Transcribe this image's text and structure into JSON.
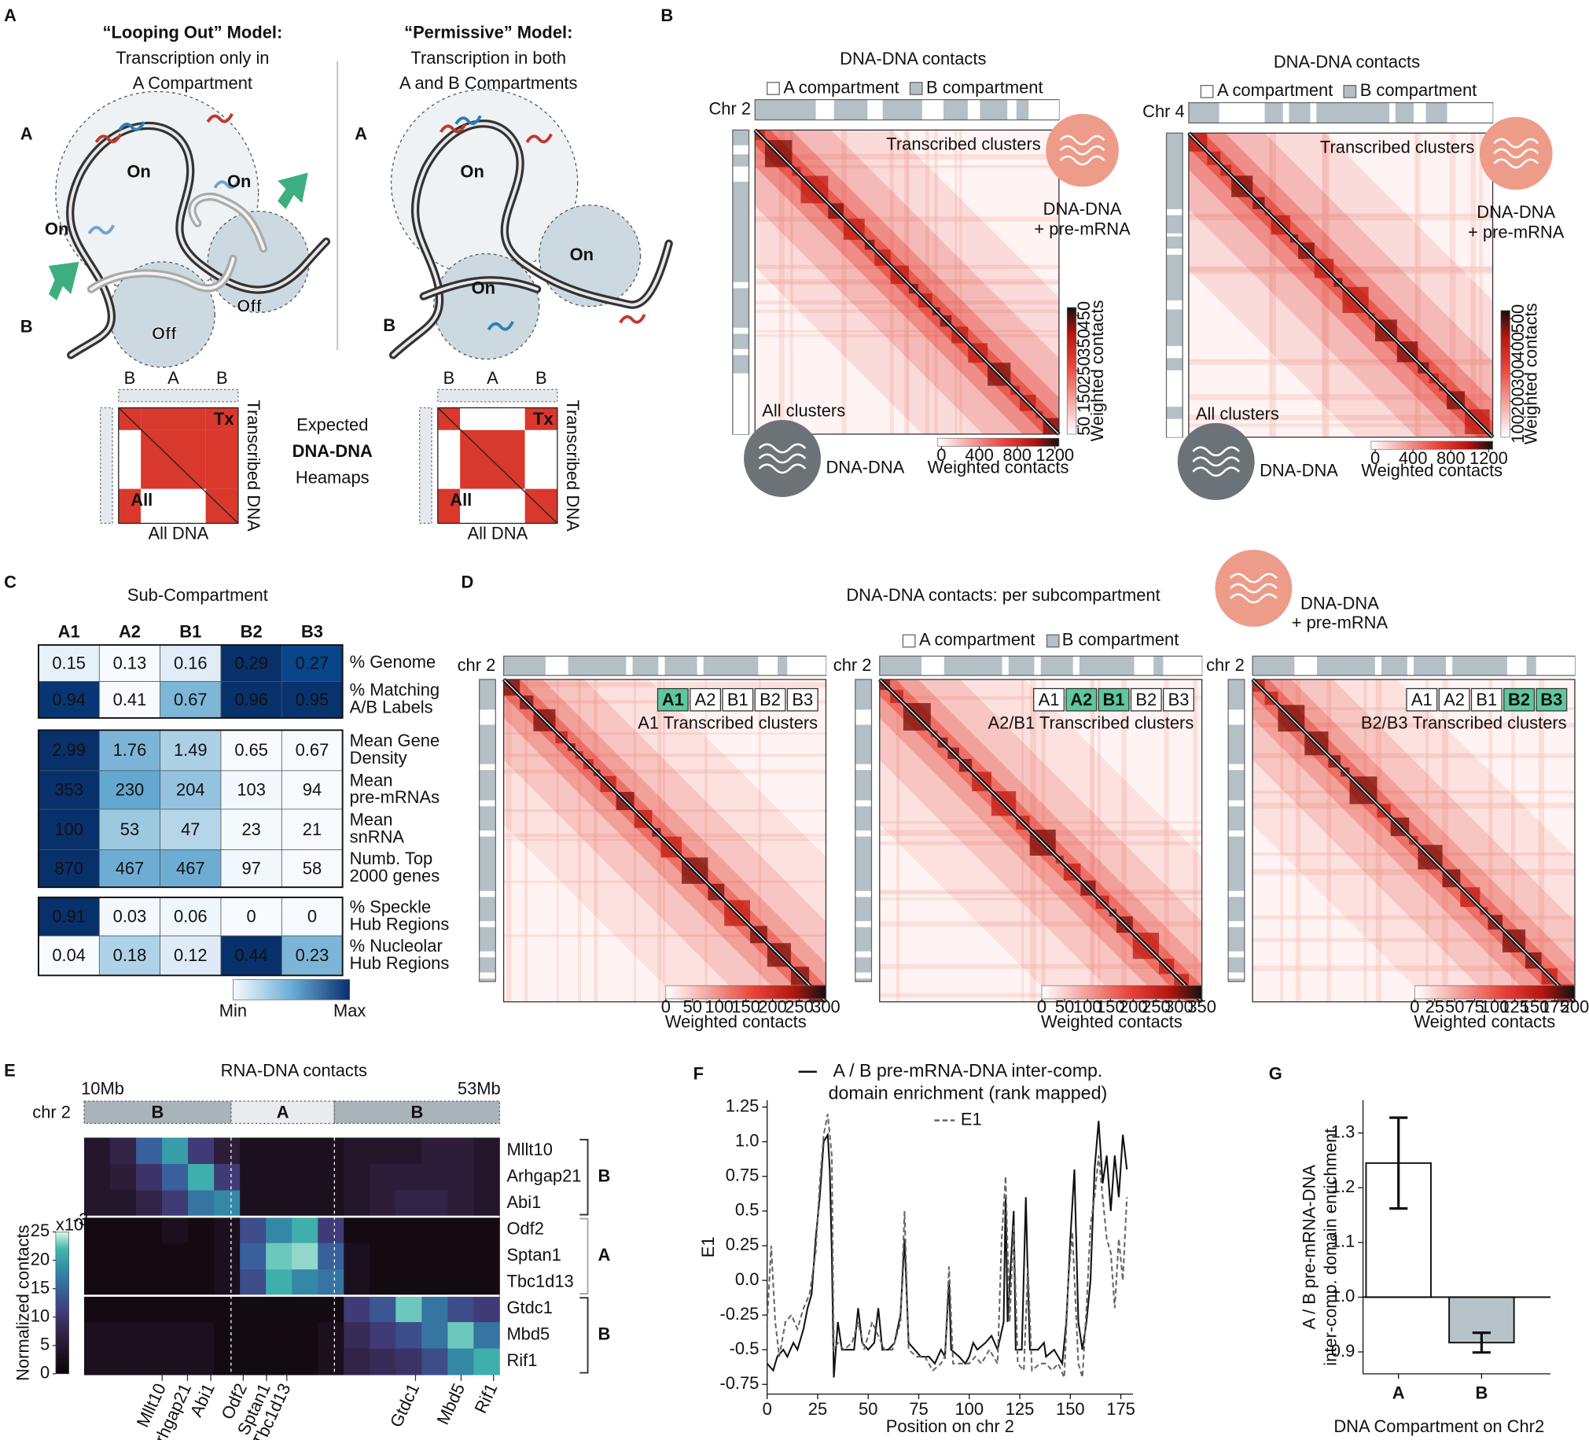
{
  "panel_a": {
    "label": "A",
    "left_title": [
      "“Looping Out” Model:",
      "Transcription only in",
      "A Compartment"
    ],
    "right_title": [
      "“Permissive” Model:",
      "Transcription in both",
      "A and B Compartments"
    ],
    "side_labels": [
      "A",
      "B"
    ],
    "on": "On",
    "off": "Off",
    "matrix_cols": [
      "B",
      "A",
      "B"
    ],
    "tx": "Tx",
    "all": "All",
    "y_label": "Transcribed DNA",
    "x_label": "All DNA",
    "expected": [
      "Expected",
      "DNA-DNA",
      "Heamaps"
    ]
  },
  "panel_b": {
    "label": "B",
    "legend": [
      "A compartment",
      "B compartment"
    ],
    "top_label": "Transcribed clusters",
    "top_icon": [
      "DNA-DNA",
      "+ pre-mRNA"
    ],
    "bottom_label": "All clusters",
    "bottom_icon": "DNA-DNA",
    "colorbar_label": "Weighted contacts",
    "maps": [
      {
        "title": "DNA-DNA contacts",
        "chrom": "Chr 2",
        "colorbar_ticks": [
          0,
          400,
          800,
          1200
        ],
        "vbar_ticks": [
          50,
          150,
          250,
          350,
          450
        ]
      },
      {
        "title": "DNA-DNA contacts",
        "chrom": "Chr 4",
        "colorbar_ticks": [
          0,
          400,
          800,
          1200
        ],
        "vbar_ticks": [
          100,
          200,
          300,
          400,
          500
        ]
      }
    ]
  },
  "panel_c": {
    "label": "C",
    "title": "Sub-Compartment",
    "columns": [
      "A1",
      "A2",
      "B1",
      "B2",
      "B3"
    ],
    "min": "Min",
    "max": "Max",
    "groups": [
      [
        {
          "label": [
            "% Genome"
          ],
          "values": [
            0.15,
            0.13,
            0.16,
            0.29,
            0.27
          ]
        },
        {
          "label": [
            "% Matching",
            "A/B Labels"
          ],
          "values": [
            0.94,
            0.41,
            0.67,
            0.96,
            0.95
          ]
        }
      ],
      [
        {
          "label": [
            "Mean Gene",
            "Density"
          ],
          "values": [
            2.99,
            1.76,
            1.49,
            0.65,
            0.67
          ]
        },
        {
          "label": [
            "Mean",
            "pre-mRNAs"
          ],
          "values": [
            353,
            230,
            204,
            103,
            94
          ]
        },
        {
          "label": [
            "Mean",
            "snRNA"
          ],
          "values": [
            100,
            53,
            47,
            23,
            21
          ]
        },
        {
          "label": [
            "Numb. Top",
            "2000 genes"
          ],
          "values": [
            870,
            467,
            467,
            97,
            58
          ]
        }
      ],
      [
        {
          "label": [
            "% Speckle",
            "Hub Regions"
          ],
          "values": [
            0.91,
            0.03,
            0.06,
            0,
            0
          ]
        },
        {
          "label": [
            "% Nucleolar",
            "Hub Regions"
          ],
          "values": [
            0.04,
            0.18,
            0.12,
            0.44,
            0.23
          ]
        }
      ]
    ]
  },
  "panel_d": {
    "label": "D",
    "title": "DNA-DNA contacts: per subcompartment",
    "icon": [
      "DNA-DNA",
      "+ pre-mRNA"
    ],
    "legend": [
      "A compartment",
      "B compartment"
    ],
    "chips": [
      "A1",
      "A2",
      "B1",
      "B2",
      "B3"
    ],
    "colorbar_label": "Weighted contacts",
    "maps": [
      {
        "chrom": "chr 2",
        "highlight": [
          "A1"
        ],
        "caption": "A1 Transcribed clusters",
        "colorbar_ticks": [
          0,
          50,
          100,
          150,
          200,
          250,
          300
        ]
      },
      {
        "chrom": "chr 2",
        "highlight": [
          "A2",
          "B1"
        ],
        "caption": "A2/B1 Transcribed clusters",
        "colorbar_ticks": [
          0,
          50,
          100,
          150,
          200,
          250,
          300,
          350
        ]
      },
      {
        "chrom": "chr 2",
        "highlight": [
          "B2",
          "B3"
        ],
        "caption": "B2/B3 Transcribed clusters",
        "colorbar_ticks": [
          0,
          25,
          50,
          75,
          100,
          125,
          150,
          175,
          200
        ]
      }
    ]
  },
  "panel_e": {
    "label": "E",
    "title": "RNA-DNA contacts",
    "start": "10Mb",
    "end": "53Mb",
    "chrom": "chr 2",
    "segments": [
      "B",
      "A",
      "B"
    ],
    "genes": [
      "Mllt10",
      "Arhgap21",
      "Abi1",
      "Odf2",
      "Sptan1",
      "Tbc1d13",
      "Gtdc1",
      "Mbd5",
      "Rif1"
    ],
    "groups": [
      "B",
      "A",
      "B"
    ],
    "colorbar_label": "Normalized contacts",
    "colorbar_scale": {
      "base": "x10",
      "exp": "-3"
    },
    "colorbar_ticks": [
      0,
      5,
      10,
      15,
      20,
      25
    ],
    "vlim": [
      0,
      25
    ],
    "values": [
      [
        3,
        5,
        12,
        18,
        8,
        4,
        2,
        2,
        2,
        2,
        3,
        3,
        3,
        4,
        4,
        3
      ],
      [
        3,
        4,
        7,
        12,
        20,
        8,
        2,
        2,
        2,
        2,
        3,
        4,
        4,
        4,
        4,
        3
      ],
      [
        3,
        3,
        5,
        8,
        14,
        16,
        2,
        2,
        2,
        2,
        3,
        4,
        5,
        5,
        4,
        3
      ],
      [
        1,
        1,
        1,
        2,
        1,
        2,
        10,
        16,
        20,
        8,
        1,
        1,
        1,
        1,
        1,
        1
      ],
      [
        1,
        1,
        1,
        1,
        1,
        2,
        12,
        22,
        23,
        12,
        2,
        1,
        1,
        1,
        1,
        1
      ],
      [
        1,
        1,
        1,
        1,
        1,
        2,
        10,
        20,
        16,
        14,
        2,
        1,
        1,
        1,
        1,
        1
      ],
      [
        1,
        1,
        1,
        1,
        1,
        1,
        1,
        1,
        1,
        1,
        8,
        11,
        22,
        14,
        10,
        8
      ],
      [
        2,
        2,
        2,
        2,
        2,
        1,
        1,
        1,
        1,
        2,
        6,
        8,
        10,
        14,
        22,
        14
      ],
      [
        2,
        2,
        2,
        2,
        2,
        1,
        1,
        1,
        1,
        2,
        5,
        6,
        7,
        10,
        16,
        20
      ]
    ]
  },
  "panel_f": {
    "label": "F",
    "type": "line",
    "ylabel": "E1",
    "xlabel": "Position on chr 2",
    "xlim": [
      0,
      181
    ],
    "ylim": [
      -0.82,
      1.3
    ],
    "xticks": [
      0,
      25,
      50,
      75,
      100,
      125,
      150,
      175
    ],
    "yticks": [
      -0.75,
      {
        "value": -0.5,
        "label": "-0.5"
      },
      -0.25,
      {
        "value": 0,
        "label": "0.0"
      },
      0.25,
      {
        "value": 0.5,
        "label": "0.5"
      },
      0.75,
      {
        "value": 1,
        "label": "1.0"
      },
      1.25
    ],
    "series": [
      {
        "name": "A / B pre-mRNA-DNA inter-comp. domain enrichment (rank mapped)",
        "color": "#111111",
        "dash": false,
        "x": [
          0,
          3,
          5,
          8,
          10,
          13,
          15,
          18,
          20,
          22,
          24,
          26,
          28,
          30,
          31,
          32,
          33,
          35,
          37,
          40,
          43,
          45,
          47,
          50,
          53,
          55,
          57,
          60,
          63,
          66,
          68,
          70,
          73,
          76,
          80,
          83,
          86,
          88,
          90,
          91,
          95,
          98,
          100,
          102,
          104,
          108,
          111,
          114,
          117,
          118,
          119,
          122,
          123,
          126,
          128,
          129,
          130,
          134,
          137,
          138,
          142,
          146,
          148,
          150,
          152,
          154,
          156,
          158,
          160,
          162,
          164,
          166,
          168,
          170,
          172,
          174,
          176,
          178
        ],
        "values": [
          -0.6,
          -0.65,
          -0.55,
          -0.5,
          -0.55,
          -0.45,
          -0.5,
          -0.35,
          -0.2,
          -0.1,
          0.3,
          0.6,
          1.0,
          1.05,
          0.8,
          0.2,
          -0.7,
          -0.3,
          -0.5,
          -0.5,
          -0.5,
          -0.2,
          -0.45,
          -0.5,
          -0.45,
          -0.2,
          -0.5,
          -0.5,
          -0.45,
          -0.25,
          0.3,
          -0.45,
          -0.5,
          -0.55,
          -0.55,
          -0.6,
          -0.5,
          -0.55,
          0.0,
          -0.5,
          -0.55,
          -0.6,
          -0.55,
          -0.45,
          -0.5,
          -0.45,
          -0.4,
          -0.5,
          -0.3,
          0.6,
          -0.3,
          0.5,
          -0.5,
          -0.5,
          0.6,
          0.0,
          -0.5,
          -0.5,
          -0.45,
          -0.55,
          -0.5,
          -0.6,
          -0.3,
          0.3,
          0.8,
          -0.3,
          -0.5,
          -0.3,
          0.0,
          0.8,
          1.15,
          0.7,
          0.9,
          0.5,
          0.9,
          0.6,
          1.05,
          0.8
        ]
      },
      {
        "name": "E1",
        "color": "#666666",
        "dash": true,
        "x": [
          0,
          2,
          4,
          6,
          9,
          12,
          15,
          18,
          21,
          24,
          26,
          28,
          30,
          32,
          33,
          35,
          38,
          42,
          45,
          48,
          50,
          52,
          55,
          58,
          62,
          66,
          68,
          70,
          74,
          78,
          82,
          86,
          88,
          90,
          92,
          96,
          100,
          103,
          106,
          110,
          114,
          116,
          118,
          120,
          122,
          124,
          127,
          129,
          131,
          135,
          138,
          141,
          144,
          147,
          149,
          151,
          154,
          156,
          158,
          160,
          162,
          164,
          166,
          168,
          170,
          172,
          174,
          176,
          178
        ],
        "values": [
          -0.3,
          0.25,
          -0.3,
          -0.55,
          -0.3,
          -0.25,
          -0.35,
          -0.2,
          -0.1,
          0.2,
          0.7,
          1.05,
          1.2,
          0.9,
          -0.5,
          -0.45,
          -0.5,
          -0.45,
          -0.3,
          -0.5,
          -0.4,
          -0.3,
          -0.4,
          -0.5,
          -0.5,
          -0.3,
          0.5,
          -0.5,
          -0.55,
          -0.55,
          -0.65,
          -0.6,
          -0.55,
          0.1,
          -0.6,
          -0.6,
          -0.6,
          -0.55,
          -0.6,
          -0.5,
          -0.6,
          0.3,
          0.75,
          -0.3,
          0.4,
          -0.6,
          -0.65,
          0.1,
          -0.65,
          -0.6,
          -0.6,
          -0.65,
          -0.6,
          -0.7,
          0.0,
          0.35,
          -0.6,
          -0.7,
          -0.2,
          0.4,
          0.6,
          0.9,
          0.6,
          0.3,
          0.2,
          -0.2,
          0.3,
          0.0,
          0.6
        ]
      }
    ]
  },
  "panel_g": {
    "label": "G",
    "type": "bar",
    "ylabel": [
      "A / B pre-mRNA-DNA",
      "inter-comp. domain enrichment"
    ],
    "xlabel": "DNA Compartment on Chr2",
    "categories": [
      "A",
      "B"
    ],
    "values": [
      1.245,
      0.917
    ],
    "errors": [
      0.083,
      0.018
    ],
    "colors": [
      "#ffffff",
      "#b8c3c9"
    ],
    "baseline": 1.0,
    "ylim": [
      0.86,
      1.36
    ],
    "yticks": [
      0.9,
      {
        "value": 1,
        "label": "1.0"
      },
      1.1,
      1.2,
      1.3
    ]
  }
}
